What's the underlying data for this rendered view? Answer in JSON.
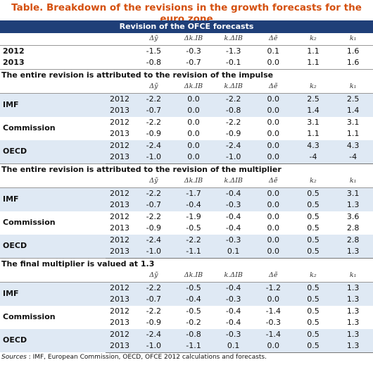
{
  "title": "Table. Breakdown of the revisions in the growth forecasts for the euro zone",
  "header": "Revision of the OFCE forecasts",
  "columns": [
    "Δỹ",
    "Δk.IB",
    "k.ΔIB",
    "Δẽ",
    "k₂",
    "k₁"
  ],
  "ofce": [
    {
      "year": "2012",
      "values": [
        "-1.5",
        "-0.3",
        "-1.3",
        "0.1",
        "1.1",
        "1.6"
      ]
    },
    {
      "year": "2013",
      "values": [
        "-0.8",
        "-0.7",
        "-0.1",
        "0.0",
        "1.1",
        "1.6"
      ]
    }
  ],
  "sections": [
    {
      "title": "The entire revision is attributed to the revision of the impulse",
      "groups": [
        {
          "name": "IMF",
          "rows": [
            {
              "year": "2012",
              "values": [
                "-2.2",
                "0.0",
                "-2.2",
                "0.0",
                "2.5",
                "2.5"
              ]
            },
            {
              "year": "2013",
              "values": [
                "-0.7",
                "0.0",
                "-0.8",
                "0.0",
                "1.4",
                "1.4"
              ]
            }
          ]
        },
        {
          "name": "Commission",
          "rows": [
            {
              "year": "2012",
              "values": [
                "-2.2",
                "0.0",
                "-2.2",
                "0.0",
                "3.1",
                "3.1"
              ]
            },
            {
              "year": "2013",
              "values": [
                "-0.9",
                "0.0",
                "-0.9",
                "0.0",
                "1.1",
                "1.1"
              ]
            }
          ]
        },
        {
          "name": "OECD",
          "rows": [
            {
              "year": "2012",
              "values": [
                "-2.4",
                "0.0",
                "-2.4",
                "0.0",
                "4.3",
                "4.3"
              ]
            },
            {
              "year": "2013",
              "values": [
                "-1.0",
                "0.0",
                "-1.0",
                "0.0",
                "-4",
                "-4"
              ]
            }
          ]
        }
      ]
    },
    {
      "title": "The entire revision is attributed to the revision of the multiplier",
      "groups": [
        {
          "name": "IMF",
          "rows": [
            {
              "year": "2012",
              "values": [
                "-2.2",
                "-1.7",
                "-0.4",
                "0.0",
                "0.5",
                "3.1"
              ]
            },
            {
              "year": "2013",
              "values": [
                "-0.7",
                "-0.4",
                "-0.3",
                "0.0",
                "0.5",
                "1.3"
              ]
            }
          ]
        },
        {
          "name": "Commission",
          "rows": [
            {
              "year": "2012",
              "values": [
                "-2.2",
                "-1.9",
                "-0.4",
                "0.0",
                "0.5",
                "3.6"
              ]
            },
            {
              "year": "2013",
              "values": [
                "-0.9",
                "-0.5",
                "-0.4",
                "0.0",
                "0.5",
                "2.8"
              ]
            }
          ]
        },
        {
          "name": "OECD",
          "rows": [
            {
              "year": "2012",
              "values": [
                "-2.4",
                "-2.2",
                "-0.3",
                "0.0",
                "0.5",
                "2.8"
              ]
            },
            {
              "year": "2013",
              "values": [
                "-1.0",
                "-1.1",
                "0.1",
                "0.0",
                "0.5",
                "1.3"
              ]
            }
          ]
        }
      ]
    },
    {
      "title": "The final multiplier is valued at 1.3",
      "groups": [
        {
          "name": "IMF",
          "rows": [
            {
              "year": "2012",
              "values": [
                "-2.2",
                "-0.5",
                "-0.4",
                "-1.2",
                "0.5",
                "1.3"
              ]
            },
            {
              "year": "2013",
              "values": [
                "-0.7",
                "-0.4",
                "-0.3",
                "0.0",
                "0.5",
                "1.3"
              ]
            }
          ]
        },
        {
          "name": "Commission",
          "rows": [
            {
              "year": "2012",
              "values": [
                "-2.2",
                "-0.5",
                "-0.4",
                "-1.4",
                "0.5",
                "1.3"
              ]
            },
            {
              "year": "2013",
              "values": [
                "-0.9",
                "-0.2",
                "-0.4",
                "-0.3",
                "0.5",
                "1.3"
              ]
            }
          ]
        },
        {
          "name": "OECD",
          "rows": [
            {
              "year": "2012",
              "values": [
                "-2.4",
                "-0.8",
                "-0.3",
                "-1.4",
                "0.5",
                "1.3"
              ]
            },
            {
              "year": "2013",
              "values": [
                "-1.0",
                "-1.1",
                "0.1",
                "0.0",
                "0.5",
                "1.3"
              ]
            }
          ]
        }
      ]
    }
  ],
  "sources": {
    "label": "Sources",
    "text": " : IMF, European Commission, OECD, OFCE 2012 calculations and forecasts."
  }
}
